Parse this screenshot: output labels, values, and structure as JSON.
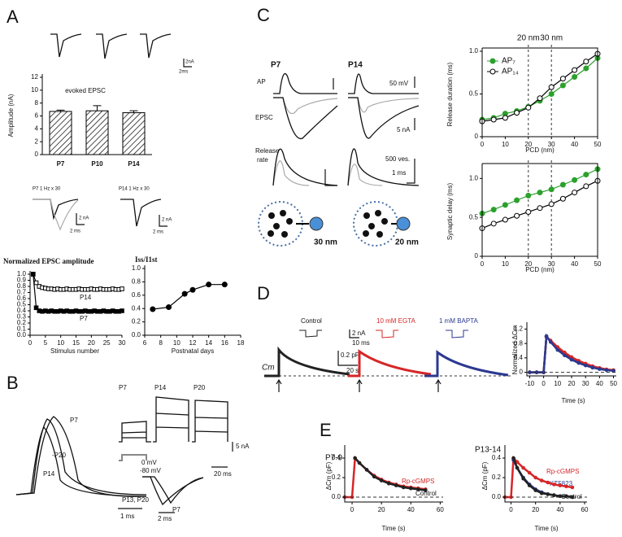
{
  "panel_labels": [
    "A",
    "B",
    "C",
    "D",
    "E"
  ],
  "labels": {
    "a_scale_na": "2nA",
    "a_scale_ms": "2ms",
    "a_train_p7": "P7  1 Hz x 30",
    "a_train_p14": "P14  1 Hz x 30",
    "a_sb1_na": "2 nA",
    "a_sb1_ms": "2 ms",
    "a_sb2_na": "2 nA",
    "a_sb2_ms": "2 ms",
    "b_p7": "P7",
    "b_p20": "-P20",
    "b_p14": "P14",
    "b_1ms": "1 ms",
    "b_col_p7": "P7",
    "b_col_p14": "P14",
    "b_col_p20": "P20",
    "b_5na": "5 nA",
    "b_0mv": "0 mV",
    "b_80mv": "-80 mV",
    "b_20ms": "20 ms",
    "b_p13p20": "P13, P20",
    "b_p7b": "P7",
    "b_2ms": "2 ms",
    "c_p7": "P7",
    "c_p14": "P14",
    "c_ap": "AP",
    "c_epsc": "EPSC",
    "c_release": "Release",
    "c_rate": "rate",
    "c_50mv": "50 mV",
    "c_5na": "5 nA",
    "c_500ves": "500 ves.",
    "c_1ms": "1 ms",
    "c_30nm": "30 nm",
    "c_20nm": "20 nm",
    "d_control": "Control",
    "d_egta": "10 mM EGTA",
    "d_bapta": "1 mM BAPTA",
    "d_2na": "2 nA",
    "d_10ms": "10 ms",
    "d_02pf": "0.2 pF",
    "d_20s": "20 s",
    "d_cm": "Cm"
  },
  "chart_data": [
    {
      "type": "bar",
      "title": "evoked EPSC",
      "ylabel": "Amplitude (nA)",
      "categories": [
        "P7",
        "P10",
        "P14"
      ],
      "values": [
        6.7,
        6.8,
        6.5
      ],
      "errors": [
        0.2,
        0.8,
        0.3
      ],
      "ylim": [
        0,
        12
      ],
      "yticks": [
        0,
        2,
        4,
        6,
        8,
        10,
        12
      ],
      "fill": "hatch"
    },
    {
      "type": "line",
      "title": "Normalized EPSC amplitude",
      "xlabel": "Stimulus number",
      "x": [
        1,
        2,
        3,
        4,
        5,
        6,
        7,
        8,
        9,
        10,
        11,
        12,
        13,
        14,
        15,
        16,
        17,
        18,
        19,
        20,
        21,
        22,
        23,
        24,
        25,
        26,
        27,
        28,
        29,
        30
      ],
      "series": [
        {
          "name": "P14",
          "color": "#000000",
          "marker": "square-open",
          "values": [
            1.0,
            0.86,
            0.8,
            0.78,
            0.77,
            0.76,
            0.76,
            0.75,
            0.76,
            0.75,
            0.75,
            0.76,
            0.75,
            0.75,
            0.75,
            0.76,
            0.75,
            0.75,
            0.75,
            0.76,
            0.75,
            0.75,
            0.76,
            0.75,
            0.75,
            0.75,
            0.76,
            0.75,
            0.75,
            0.76
          ]
        },
        {
          "name": "P7",
          "color": "#000000",
          "marker": "square",
          "values": [
            1.0,
            0.45,
            0.4,
            0.39,
            0.4,
            0.39,
            0.4,
            0.39,
            0.39,
            0.4,
            0.39,
            0.4,
            0.39,
            0.39,
            0.4,
            0.39,
            0.39,
            0.4,
            0.39,
            0.39,
            0.4,
            0.39,
            0.39,
            0.4,
            0.39,
            0.39,
            0.4,
            0.39,
            0.39,
            0.4
          ]
        }
      ],
      "xlim": [
        0,
        30
      ],
      "ylim": [
        0,
        1
      ],
      "xticks": [
        0,
        5,
        10,
        15,
        20,
        25,
        30
      ],
      "yticks": [
        {
          "value": 0,
          "label": "0.0"
        },
        0.1,
        0.2,
        0.3,
        0.4,
        0.5,
        0.6,
        0.7,
        0.8,
        0.9,
        {
          "value": 1,
          "label": "1.0"
        }
      ]
    },
    {
      "type": "line",
      "title": "Iss/I1st",
      "xlabel": "Postnatal days",
      "x": [
        7,
        9,
        11,
        12,
        14,
        16
      ],
      "series": [
        {
          "color": "#000000",
          "marker": "circle",
          "values": [
            0.39,
            0.42,
            0.62,
            0.68,
            0.76,
            0.76
          ]
        }
      ],
      "xlim": [
        6,
        18
      ],
      "ylim": [
        0,
        1
      ],
      "xticks": [
        6,
        8,
        10,
        12,
        14,
        16,
        18
      ],
      "yticks": [
        {
          "value": 0,
          "label": "0.0"
        },
        0.2,
        0.4,
        0.6,
        0.8,
        {
          "value": 1,
          "label": "1.0"
        }
      ]
    },
    {
      "type": "line",
      "xlabel": "PCD (nm)",
      "ylabel": "Release duration (ms)",
      "x": [
        0,
        5,
        10,
        15,
        20,
        25,
        30,
        35,
        40,
        45,
        50
      ],
      "series": [
        {
          "name": "AP₇",
          "color": "#2ca02c",
          "marker": "circle",
          "values": [
            0.2,
            0.22,
            0.27,
            0.3,
            0.35,
            0.42,
            0.5,
            0.6,
            0.7,
            0.8,
            0.92
          ]
        },
        {
          "name": "AP₁₄",
          "color": "#000000",
          "marker": "circle-open",
          "values": [
            0.18,
            0.2,
            0.22,
            0.28,
            0.34,
            0.45,
            0.58,
            0.68,
            0.78,
            0.88,
            0.97
          ]
        }
      ],
      "xlim": [
        0,
        50
      ],
      "ylim": [
        0,
        1
      ],
      "xticks": [
        0,
        10,
        20,
        30,
        40,
        50
      ],
      "yticks": [
        0,
        0.5,
        {
          "value": 1,
          "label": "1.0"
        }
      ],
      "vlines": [
        {
          "value": 20,
          "label": "20 nm"
        },
        {
          "value": 30,
          "label": "30 nm"
        }
      ],
      "legend": "upper left"
    },
    {
      "type": "line",
      "xlabel": "PCD (nm)",
      "ylabel": "Synaptic delay (ms)",
      "x": [
        0,
        5,
        10,
        15,
        20,
        25,
        30,
        35,
        40,
        45,
        50
      ],
      "series": [
        {
          "color": "#2ca02c",
          "marker": "circle",
          "values": [
            0.55,
            0.6,
            0.66,
            0.72,
            0.78,
            0.82,
            0.86,
            0.92,
            0.98,
            1.05,
            1.12
          ]
        },
        {
          "color": "#000000",
          "marker": "circle-open",
          "values": [
            0.36,
            0.42,
            0.47,
            0.52,
            0.57,
            0.62,
            0.67,
            0.74,
            0.82,
            0.9,
            0.97
          ]
        }
      ],
      "xlim": [
        0,
        50
      ],
      "ylim": [
        0,
        1.15
      ],
      "xticks": [
        0,
        10,
        20,
        30,
        40,
        50
      ],
      "yticks": [
        0,
        0.5,
        {
          "value": 1,
          "label": "1.0"
        }
      ],
      "vlines": [
        20,
        30
      ]
    },
    {
      "type": "line",
      "xlabel": "Time (s)",
      "ylabel": "Normalized ΔCm",
      "x": [
        -10,
        -5,
        0,
        2,
        5,
        10,
        15,
        20,
        25,
        30,
        35,
        40,
        45,
        50
      ],
      "series": [
        {
          "color": "#222222",
          "marker": "dot",
          "values": [
            0,
            0,
            0,
            1.0,
            0.85,
            0.65,
            0.5,
            0.38,
            0.28,
            0.2,
            0.14,
            0.1,
            0.07,
            0.05
          ]
        },
        {
          "color": "#d62728",
          "marker": "dot",
          "values": [
            0,
            0,
            0,
            0.98,
            0.88,
            0.7,
            0.55,
            0.42,
            0.32,
            0.24,
            0.17,
            0.12,
            0.08,
            0.06
          ]
        },
        {
          "color": "#2b3990",
          "marker": "dot",
          "values": [
            0,
            0,
            0,
            1.0,
            0.84,
            0.62,
            0.47,
            0.35,
            0.26,
            0.19,
            0.13,
            0.09,
            0.06,
            0.04
          ]
        }
      ],
      "xlim": [
        -12,
        52
      ],
      "ylim": [
        -0.1,
        1.3
      ],
      "xticks": [
        -10,
        0,
        10,
        20,
        30,
        40,
        50
      ],
      "yticks": [
        0,
        0.4,
        0.8,
        1.2
      ]
    },
    {
      "type": "line",
      "title": "P7-9",
      "xlabel": "Time (s)",
      "ylabel": "ΔCm (pF)",
      "x": [
        -5,
        0,
        2,
        5,
        10,
        15,
        20,
        25,
        30,
        35,
        40,
        45,
        50
      ],
      "series": [
        {
          "name": "Rp-cGMPS",
          "color": "#d62728",
          "marker": "dot",
          "values": [
            0,
            0,
            0.4,
            0.35,
            0.28,
            0.22,
            0.18,
            0.15,
            0.13,
            0.11,
            0.1,
            0.09,
            0.08
          ]
        },
        {
          "name": "Control",
          "color": "#222222",
          "marker": "dot",
          "values": [
            null,
            null,
            0.4,
            0.35,
            0.28,
            0.21,
            0.17,
            0.14,
            0.12,
            0.1,
            0.09,
            0.08,
            0.07
          ]
        }
      ],
      "xlim": [
        -5,
        62
      ],
      "ylim": [
        -0.05,
        0.5
      ],
      "xticks": [
        0,
        20,
        40,
        60
      ],
      "yticks": [
        {
          "value": 0,
          "label": "0.0"
        },
        0.2,
        0.4
      ]
    },
    {
      "type": "line",
      "title": "P13-14",
      "xlabel": "Time (s)",
      "ylabel": "ΔCm (pF)",
      "x": [
        -5,
        0,
        2,
        5,
        10,
        15,
        20,
        25,
        30,
        35,
        40,
        45,
        50
      ],
      "series": [
        {
          "name": "Rp-cGMPS",
          "color": "#d62728",
          "marker": "dot",
          "values": [
            0,
            0,
            0.4,
            0.36,
            0.3,
            0.25,
            0.2,
            0.17,
            0.15,
            0.13,
            0.12,
            0.11,
            0.1
          ]
        },
        {
          "name": "KT5823",
          "color": "#2b3990",
          "marker": "dot",
          "values": [
            null,
            null,
            0.38,
            0.3,
            0.2,
            0.13,
            0.08,
            0.05,
            0.03,
            0.02,
            0.01,
            0.01,
            0.0
          ]
        },
        {
          "name": "Control",
          "color": "#222222",
          "marker": "dot",
          "values": [
            null,
            null,
            0.4,
            0.3,
            0.19,
            0.12,
            0.07,
            0.04,
            0.03,
            0.02,
            0.01,
            0.01,
            0.0
          ]
        }
      ],
      "xlim": [
        -5,
        62
      ],
      "ylim": [
        -0.05,
        0.5
      ],
      "xticks": [
        0,
        20,
        40,
        60
      ],
      "yticks": [
        {
          "value": 0,
          "label": "0.0"
        },
        0.2,
        0.4
      ]
    }
  ]
}
